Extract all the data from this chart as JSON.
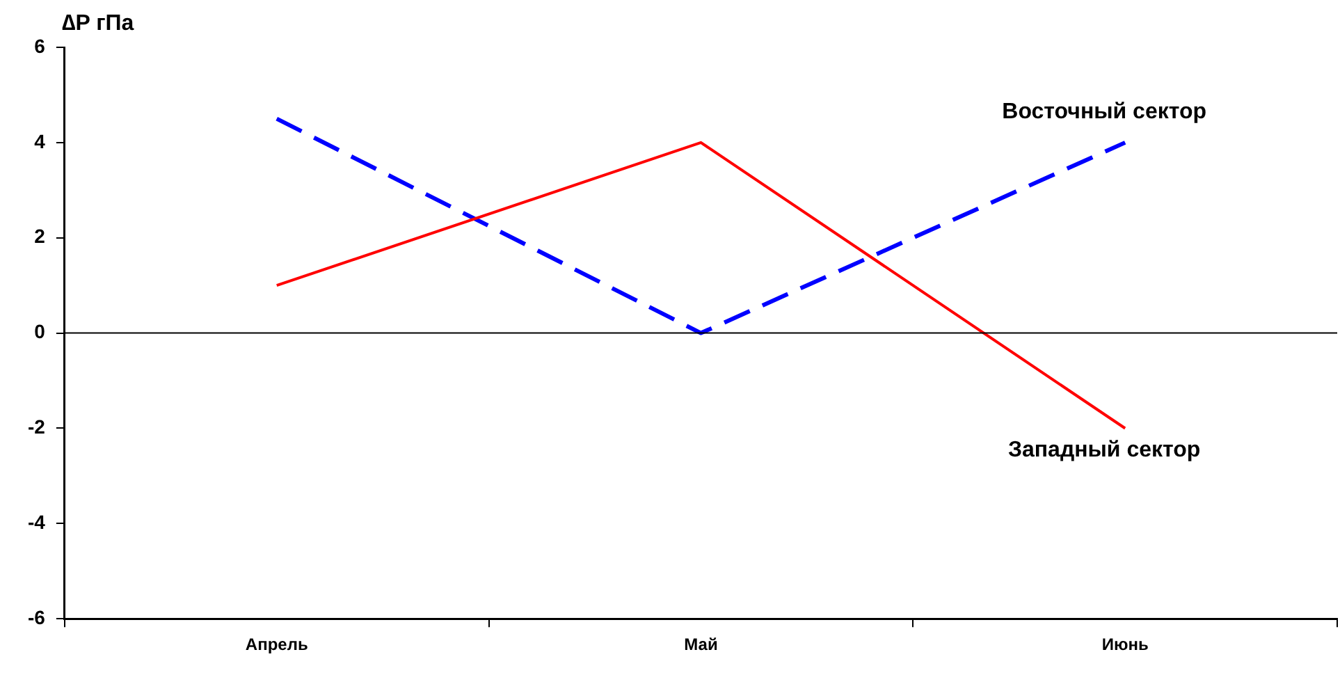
{
  "chart_data": {
    "type": "line",
    "ylabel": "∆P гПа",
    "categories": [
      "Апрель",
      "Май",
      "Июнь"
    ],
    "series": [
      {
        "name": "Западный сектор",
        "color": "#ff0000",
        "line_style": "solid",
        "values": [
          1,
          4,
          -2
        ]
      },
      {
        "name": "Восточный сектор",
        "color": "#0000ff",
        "line_style": "dashed",
        "values": [
          4.5,
          0,
          4
        ]
      }
    ],
    "ylim": [
      -6,
      6
    ],
    "yticks": [
      -6,
      -4,
      -2,
      0,
      2,
      4,
      6
    ],
    "ref_lines": [
      {
        "axis": "y",
        "value": 0
      }
    ],
    "grid": false,
    "legend": false,
    "marker": "none"
  }
}
